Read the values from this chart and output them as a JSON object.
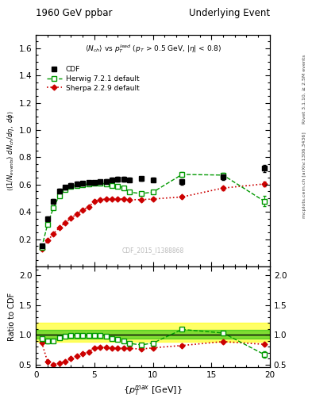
{
  "title_left": "1960 GeV ppbar",
  "title_right": "Underlying Event",
  "subtitle": "<N_{ch}> vs p_{T}^{lead} (p_{T} > 0.5 GeV, |\\eta| < 0.8)",
  "watermark": "CDF_2015_I1388868",
  "right_label_top": "Rivet 3.1.10, ≥ 2.5M events",
  "right_label_bottom": "mcplots.cern.ch [arXiv:1306.3436]",
  "ylabel_main": "((1/N_{events}) dN_{ch}/d\\eta, d\\phi)",
  "ylabel_ratio": "Ratio to CDF",
  "xlabel": "{p_{T}^{max} [GeV]}",
  "xlim": [
    0,
    20
  ],
  "ylim_main": [
    0,
    1.7
  ],
  "ylim_ratio": [
    0.45,
    2.15
  ],
  "yticks_main": [
    0.2,
    0.4,
    0.6,
    0.8,
    1.0,
    1.2,
    1.4,
    1.6
  ],
  "yticks_ratio": [
    0.5,
    1.0,
    1.5,
    2.0
  ],
  "xticks": [
    0,
    5,
    10,
    15,
    20
  ],
  "cdf_x": [
    0.5,
    1.0,
    1.5,
    2.0,
    2.5,
    3.0,
    3.5,
    4.0,
    4.5,
    5.0,
    5.5,
    6.0,
    6.5,
    7.0,
    7.5,
    8.0,
    9.0,
    10.0,
    12.5,
    16.0,
    19.5
  ],
  "cdf_y": [
    0.15,
    0.35,
    0.48,
    0.555,
    0.58,
    0.595,
    0.605,
    0.61,
    0.615,
    0.615,
    0.62,
    0.625,
    0.635,
    0.64,
    0.64,
    0.635,
    0.645,
    0.635,
    0.62,
    0.655,
    0.72
  ],
  "cdf_yerr": [
    0.01,
    0.015,
    0.015,
    0.015,
    0.015,
    0.015,
    0.015,
    0.015,
    0.015,
    0.015,
    0.015,
    0.015,
    0.015,
    0.015,
    0.015,
    0.015,
    0.015,
    0.015,
    0.02,
    0.02,
    0.025
  ],
  "herwig_x": [
    0.5,
    1.0,
    1.5,
    2.0,
    2.5,
    3.0,
    3.5,
    4.0,
    4.5,
    5.0,
    5.5,
    6.0,
    6.5,
    7.0,
    7.5,
    8.0,
    9.0,
    10.0,
    12.5,
    16.0,
    19.5
  ],
  "herwig_y": [
    0.14,
    0.31,
    0.43,
    0.52,
    0.565,
    0.585,
    0.595,
    0.6,
    0.605,
    0.61,
    0.61,
    0.605,
    0.595,
    0.59,
    0.575,
    0.545,
    0.535,
    0.545,
    0.675,
    0.67,
    0.48
  ],
  "herwig_yerr": [
    0.005,
    0.01,
    0.01,
    0.01,
    0.01,
    0.01,
    0.01,
    0.01,
    0.01,
    0.01,
    0.01,
    0.01,
    0.01,
    0.01,
    0.01,
    0.01,
    0.01,
    0.01,
    0.015,
    0.015,
    0.04
  ],
  "sherpa_x": [
    0.5,
    1.0,
    1.5,
    2.0,
    2.5,
    3.0,
    3.5,
    4.0,
    4.5,
    5.0,
    5.5,
    6.0,
    6.5,
    7.0,
    7.5,
    8.0,
    9.0,
    10.0,
    12.5,
    16.0,
    19.5
  ],
  "sherpa_y": [
    0.13,
    0.19,
    0.24,
    0.285,
    0.32,
    0.355,
    0.385,
    0.415,
    0.435,
    0.48,
    0.49,
    0.495,
    0.495,
    0.495,
    0.495,
    0.49,
    0.49,
    0.495,
    0.51,
    0.575,
    0.605
  ],
  "sherpa_yerr": [
    0.005,
    0.008,
    0.008,
    0.008,
    0.008,
    0.008,
    0.008,
    0.008,
    0.008,
    0.008,
    0.008,
    0.008,
    0.008,
    0.008,
    0.008,
    0.008,
    0.008,
    0.008,
    0.01,
    0.015,
    0.015
  ],
  "herwig_ratio_y": [
    0.93,
    0.89,
    0.895,
    0.95,
    0.975,
    0.985,
    0.985,
    0.985,
    0.985,
    0.99,
    0.985,
    0.97,
    0.935,
    0.92,
    0.9,
    0.855,
    0.83,
    0.86,
    1.09,
    1.03,
    0.67
  ],
  "sherpa_ratio_y": [
    0.87,
    0.545,
    0.5,
    0.52,
    0.55,
    0.6,
    0.64,
    0.68,
    0.71,
    0.78,
    0.79,
    0.79,
    0.78,
    0.775,
    0.775,
    0.77,
    0.76,
    0.78,
    0.82,
    0.885,
    0.84
  ],
  "cdf_color": "#000000",
  "herwig_color": "#009900",
  "sherpa_color": "#cc0000",
  "band_yellow": "#ffff00",
  "band_green": "#00bb00",
  "band_alpha_yellow": 0.6,
  "band_alpha_green": 0.5,
  "band_yellow_low": 0.88,
  "band_yellow_high": 1.2,
  "band_green_low": 0.94,
  "band_green_high": 1.08,
  "background_color": "#ffffff",
  "panel_bg": "#ffffff"
}
